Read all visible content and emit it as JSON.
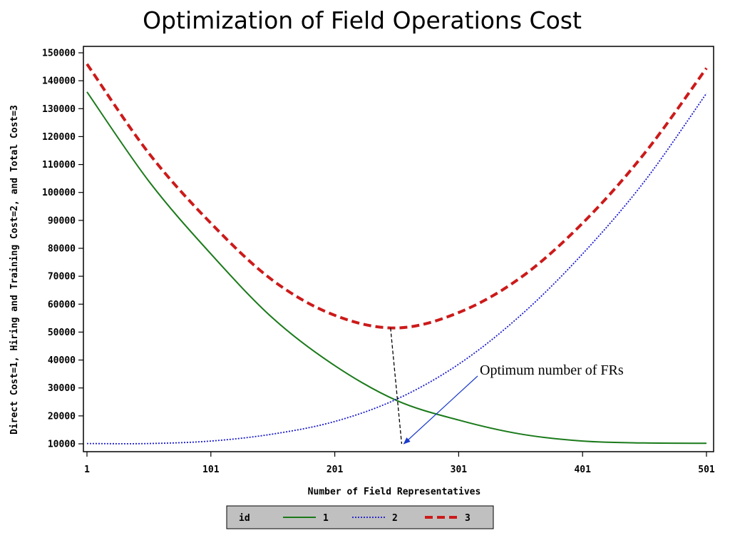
{
  "chart_data": {
    "type": "line",
    "title": "Optimization of Field Operations Cost",
    "xlabel": "Number of Field Representatives",
    "ylabel": "Direct Cost=1, Hiring and Training Cost=2, and Total Cost=3",
    "xlim": [
      1,
      501
    ],
    "ylim": [
      10000,
      150000
    ],
    "x_ticks": [
      "1",
      "101",
      "201",
      "301",
      "401",
      "501"
    ],
    "y_ticks": [
      "10000",
      "20000",
      "30000",
      "40000",
      "50000",
      "60000",
      "70000",
      "80000",
      "90000",
      "100000",
      "110000",
      "120000",
      "130000",
      "140000",
      "150000"
    ],
    "grid": false,
    "x": [
      1,
      51,
      101,
      151,
      201,
      251,
      301,
      351,
      401,
      451,
      501
    ],
    "series": [
      {
        "name": "1",
        "color": "#1a7a1a",
        "style": "solid",
        "values": [
          136000,
          104000,
          78000,
          55000,
          38000,
          25500,
          18500,
          13500,
          11000,
          10300,
          10200
        ]
      },
      {
        "name": "2",
        "color": "#1a1acc",
        "style": "dotted",
        "values": [
          10100,
          10100,
          11000,
          13500,
          18000,
          26000,
          38500,
          56000,
          78000,
          104000,
          135500
        ]
      },
      {
        "name": "3",
        "color": "#cc1a1a",
        "style": "dashed",
        "values": [
          146000,
          114000,
          89000,
          68500,
          56000,
          51500,
          57000,
          69500,
          89000,
          114000,
          144500
        ]
      }
    ],
    "legend": {
      "title": "id",
      "placement": "bottom-center"
    },
    "annotation": {
      "text": "Optimum number of FRs",
      "arrow_target": {
        "x": 255,
        "y": 10000
      }
    },
    "optimum_marker": {
      "x_top": 246,
      "y_top": 51500,
      "x_bottom": 255,
      "y_bottom": 10000
    }
  }
}
